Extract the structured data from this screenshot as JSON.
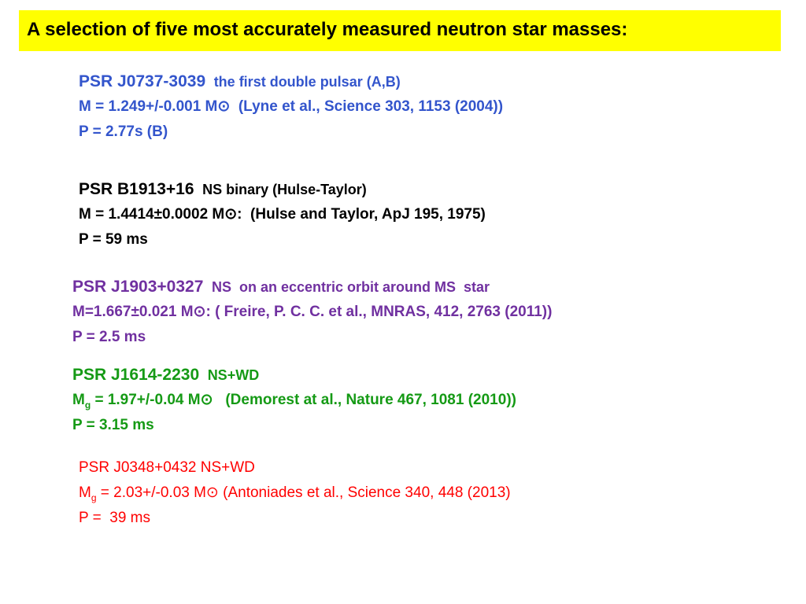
{
  "header": {
    "title": "A selection of five most accurately measured neutron star masses:"
  },
  "entries": [
    {
      "name": "PSR J0737-3039",
      "note": "the first double pulsar (A,B)",
      "lines": [
        {
          "text": "M = 1.249+/-0.001 M⊙  (Lyne et al., Science 303, 1153 (2004))"
        },
        {
          "text": "P = 2.77s (B)"
        }
      ]
    },
    {
      "name": "PSR B1913+16",
      "note": "NS binary (Hulse-Taylor)",
      "lines": [
        {
          "text": "M = 1.4414±0.0002 M⊙:  (Hulse and Taylor, ApJ 195, 1975)"
        },
        {
          "text": "P = 59 ms"
        }
      ]
    },
    {
      "name": "PSR J1903+0327",
      "note": "NS  on an eccentric orbit around MS  star",
      "lines": [
        {
          "text": "M=1.667±0.021 M⊙: ( Freire, P. C. C. et al., MNRAS, 412, 2763 (2011))"
        },
        {
          "text": "P = 2.5 ms"
        }
      ]
    },
    {
      "name": "PSR J1614-2230",
      "note": "NS+WD",
      "lines": [
        {
          "symbol": "M",
          "subscript": "g",
          "text": " = 1.97+/-0.04 M⊙   (Demorest at al., Nature 467, 1081 (2010))"
        },
        {
          "text": "P = 3.15 ms"
        }
      ]
    },
    {
      "name": "PSR J0348+0432 NS+WD",
      "lines": [
        {
          "symbol": "M",
          "subscript": "g",
          "text": " = 2.03+/-0.03 M⊙ (Antoniades et al., Science 340, 448 (2013)"
        },
        {
          "text": "P =  39 ms"
        }
      ]
    }
  ]
}
